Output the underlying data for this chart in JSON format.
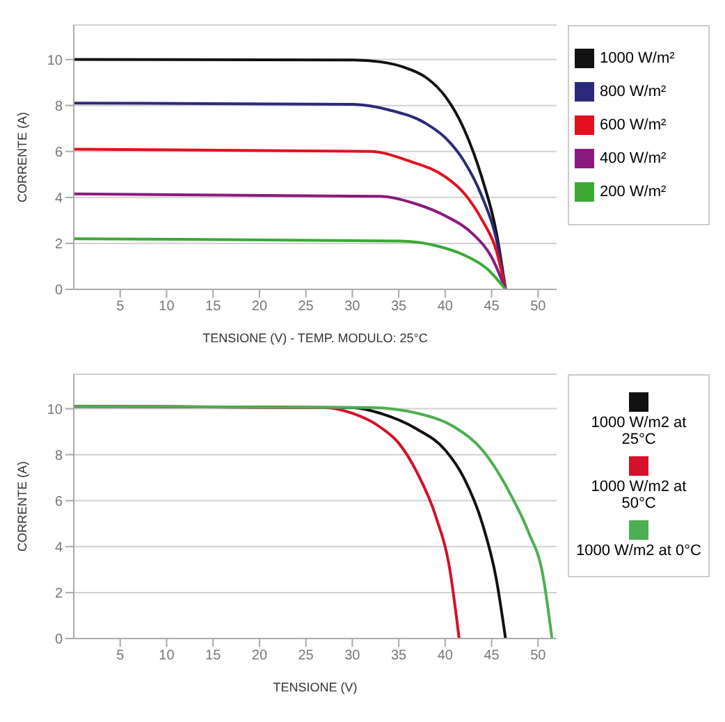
{
  "chart_data": [
    {
      "type": "line",
      "xlabel": "TENSIONE (V) - TEMP. MODULO: 25°C",
      "ylabel": "CORRENTE (A)",
      "xlim": [
        0,
        52
      ],
      "ylim": [
        0,
        11.5
      ],
      "xticks": [
        5,
        10,
        15,
        20,
        25,
        30,
        35,
        40,
        45,
        50
      ],
      "yticks": [
        0,
        2,
        4,
        6,
        8,
        10
      ],
      "grid": "y",
      "legend": "right",
      "marker": "none",
      "line_style": "solid",
      "series": [
        {
          "name": "1000 W/m²",
          "color": "#111111",
          "x": [
            0,
            30,
            33,
            36,
            38,
            40,
            42,
            44,
            45.5,
            46.5
          ],
          "values": [
            10,
            9.98,
            9.9,
            9.6,
            9.2,
            8.4,
            7,
            4.8,
            2.5,
            0
          ]
        },
        {
          "name": "800 W/m²",
          "color": "#2b2a7a",
          "x": [
            0,
            30,
            34,
            38,
            40,
            42,
            44,
            45.5,
            46.5
          ],
          "values": [
            8.1,
            8.05,
            7.8,
            7.2,
            6.6,
            5.6,
            4,
            2.2,
            0
          ]
        },
        {
          "name": "600 W/m²",
          "color": "#e3101f",
          "x": [
            0,
            32,
            36,
            40,
            42,
            44,
            45.5,
            46.5
          ],
          "values": [
            6.1,
            6,
            5.6,
            4.9,
            4.2,
            3,
            1.7,
            0
          ]
        },
        {
          "name": "400 W/m²",
          "color": "#8a1a7f",
          "x": [
            0,
            33,
            37,
            40,
            43,
            45,
            46.5
          ],
          "values": [
            4.15,
            4.05,
            3.7,
            3.2,
            2.4,
            1.4,
            0
          ]
        },
        {
          "name": "200 W/m²",
          "color": "#3aaa35",
          "x": [
            0,
            35,
            39,
            42,
            44.5,
            46.5
          ],
          "values": [
            2.2,
            2.1,
            1.9,
            1.5,
            0.9,
            0
          ]
        }
      ]
    },
    {
      "type": "line",
      "xlabel": "TENSIONE (V)",
      "ylabel": "CORRENTE (A)",
      "xlim": [
        0,
        52
      ],
      "ylim": [
        0,
        11.5
      ],
      "xticks": [
        5,
        10,
        15,
        20,
        25,
        30,
        35,
        40,
        45,
        50
      ],
      "yticks": [
        0,
        2,
        4,
        6,
        8,
        10
      ],
      "grid": "y",
      "legend": "right",
      "marker": "none",
      "line_style": "solid",
      "series": [
        {
          "name": "1000 W/m2 at 25°C",
          "color": "#111111",
          "x": [
            0,
            30,
            33,
            37,
            40,
            42,
            44,
            45.5,
            46.5
          ],
          "values": [
            10.1,
            10.05,
            9.8,
            9.1,
            8.2,
            7,
            5,
            2.6,
            0
          ]
        },
        {
          "name": "1000 W/m2 at 50°C",
          "color": "#d4102a",
          "x": [
            0,
            27,
            30,
            33,
            35,
            37,
            39,
            40.5,
            41.5
          ],
          "values": [
            10.1,
            10.05,
            9.8,
            9.2,
            8.5,
            7.2,
            5.3,
            3,
            0
          ]
        },
        {
          "name": "1000 W/m2 at 0°C",
          "color": "#4caf50",
          "x": [
            0,
            32,
            37,
            41,
            44,
            47,
            49,
            50.5,
            51.5
          ],
          "values": [
            10.1,
            10.05,
            9.8,
            9.2,
            8.2,
            6.3,
            4.6,
            2.8,
            0
          ]
        }
      ]
    }
  ]
}
